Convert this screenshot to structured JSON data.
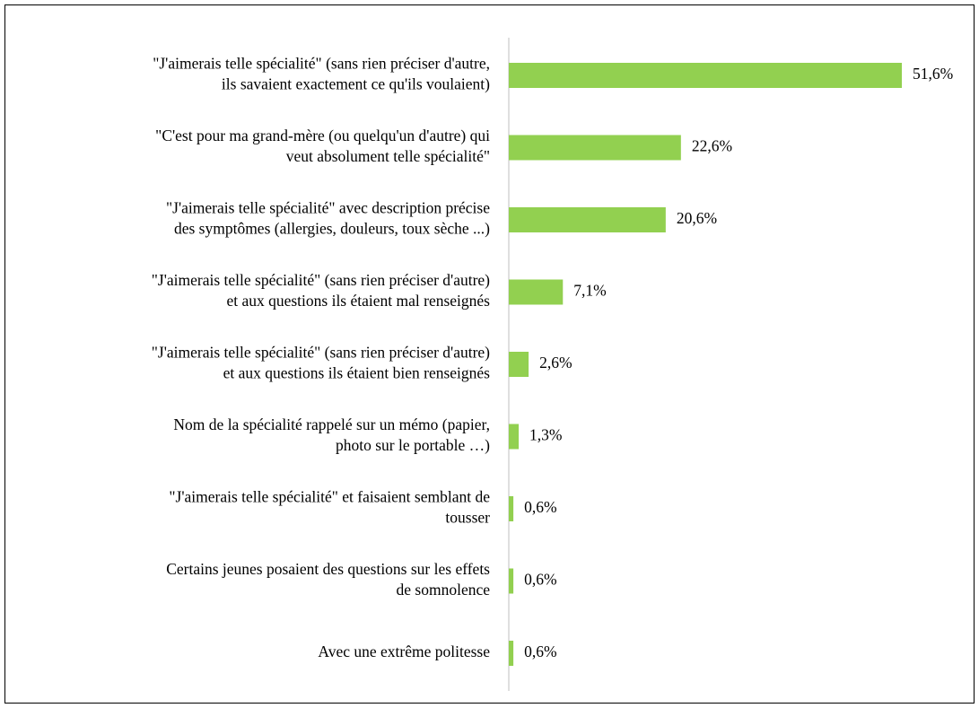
{
  "chart_data": {
    "type": "bar",
    "orientation": "horizontal",
    "categories": [
      "\"J'aimerais telle spécialité\" (sans rien préciser d'autre,\nils savaient exactement ce qu'ils voulaient)",
      "\"C'est pour ma grand-mère (ou quelqu'un d'autre) qui\nveut absolument telle spécialité\"",
      "\"J'aimerais telle spécialité\" avec description précise\ndes symptômes (allergies, douleurs, toux sèche ...)",
      "\"J'aimerais telle spécialité\" (sans rien préciser d'autre)\net aux questions ils étaient mal renseignés",
      "\"J'aimerais telle spécialité\" (sans rien préciser d'autre)\net aux questions ils étaient bien renseignés",
      "Nom de la spécialité rappelé sur un mémo (papier,\nphoto sur le portable …)",
      "\"J'aimerais telle spécialité\" et faisaient semblant de\ntousser",
      "Certains jeunes posaient des questions sur les effets\nde somnolence",
      "Avec une extrême politesse"
    ],
    "values": [
      51.6,
      22.6,
      20.6,
      7.1,
      2.6,
      1.3,
      0.6,
      0.6,
      0.6
    ],
    "value_labels": [
      "51,6%",
      "22,6%",
      "20,6%",
      "7,1%",
      "2,6%",
      "1,3%",
      "0,6%",
      "0,6%",
      "0,6%"
    ],
    "color": "#92d050"
  }
}
